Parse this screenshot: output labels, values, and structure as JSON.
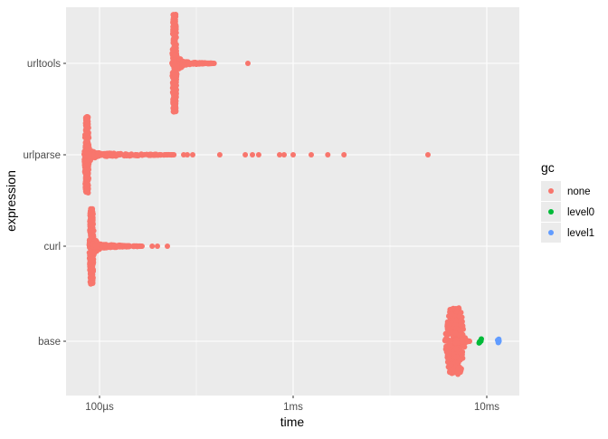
{
  "chart_data": {
    "type": "scatter",
    "subtype": "beeswarm",
    "xlabel": "time",
    "ylabel": "expression",
    "x_scale": "log10",
    "time_unit": "µs",
    "xlim": [
      75,
      13000
    ],
    "x_ticks": [
      {
        "value": 100,
        "label": "100µs"
      },
      {
        "value": 1000,
        "label": "1ms"
      },
      {
        "value": 10000,
        "label": "10ms"
      }
    ],
    "categories": [
      "base",
      "curl",
      "urlparse",
      "urltools"
    ],
    "grid": true,
    "legend": {
      "title": "gc",
      "placement": "right",
      "entries": [
        {
          "label": "none",
          "color": "#F8766D"
        },
        {
          "label": "level0",
          "color": "#00BA38"
        },
        {
          "label": "level1",
          "color": "#619CFF"
        }
      ]
    },
    "series": [
      {
        "expression": "urltools",
        "gc": "none",
        "mode": 244,
        "tail_max": 392,
        "outliers": [
          584
        ]
      },
      {
        "expression": "urlparse",
        "gc": "none",
        "mode": 86,
        "tail_max": 244,
        "outliers": [
          272,
          284,
          303,
          418,
          566,
          616,
          664,
          851,
          898,
          1000,
          1240,
          1510,
          1830,
          4970
        ]
      },
      {
        "expression": "curl",
        "gc": "none",
        "mode": 91,
        "tail_max": 166,
        "outliers": [
          187,
          199,
          224
        ]
      },
      {
        "expression": "base",
        "gc": "none",
        "mode": 6860,
        "tail_max": 8150,
        "outliers": []
      },
      {
        "expression": "base",
        "gc": "level0",
        "mode": 9270,
        "tail_max": 9350,
        "outliers": []
      },
      {
        "expression": "base",
        "gc": "level1",
        "mode": 11500,
        "tail_max": 11500,
        "outliers": []
      }
    ]
  }
}
